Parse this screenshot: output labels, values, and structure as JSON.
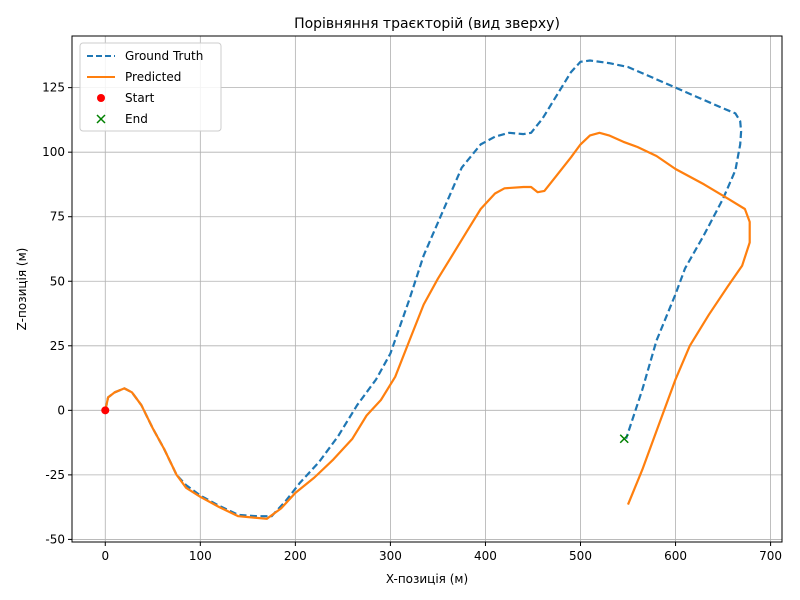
{
  "chart_data": {
    "type": "line",
    "title": "Порівняння траєкторій (вид зверху)",
    "xlabel": "X-позиція (м)",
    "ylabel": "Z-позиція (м)",
    "xlim": [
      -35,
      712
    ],
    "ylim": [
      -51,
      145
    ],
    "xticks": [
      0,
      100,
      200,
      300,
      400,
      500,
      600,
      700
    ],
    "yticks": [
      -50,
      -25,
      0,
      25,
      50,
      75,
      100,
      125
    ],
    "grid": true,
    "legend_position": "top-left",
    "series": [
      {
        "name": "Ground Truth",
        "color": "#1f77b4",
        "style": "dashed",
        "points": [
          [
            0,
            0
          ],
          [
            3,
            5
          ],
          [
            10,
            7
          ],
          [
            20,
            8.5
          ],
          [
            28,
            7
          ],
          [
            38,
            2
          ],
          [
            50,
            -7
          ],
          [
            62,
            -15
          ],
          [
            75,
            -25
          ],
          [
            85,
            -29
          ],
          [
            100,
            -33
          ],
          [
            120,
            -37
          ],
          [
            140,
            -40.5
          ],
          [
            160,
            -41
          ],
          [
            175,
            -41
          ],
          [
            190,
            -35
          ],
          [
            205,
            -28
          ],
          [
            225,
            -20
          ],
          [
            245,
            -10
          ],
          [
            265,
            2
          ],
          [
            285,
            12
          ],
          [
            300,
            22
          ],
          [
            320,
            43
          ],
          [
            335,
            60
          ],
          [
            355,
            77
          ],
          [
            375,
            94
          ],
          [
            395,
            103
          ],
          [
            410,
            106
          ],
          [
            425,
            107.5
          ],
          [
            440,
            107
          ],
          [
            448,
            107.5
          ],
          [
            460,
            113
          ],
          [
            475,
            122
          ],
          [
            490,
            131
          ],
          [
            500,
            135
          ],
          [
            510,
            135.5
          ],
          [
            530,
            134.5
          ],
          [
            550,
            133
          ],
          [
            575,
            129
          ],
          [
            600,
            125
          ],
          [
            625,
            121
          ],
          [
            650,
            117
          ],
          [
            663,
            115
          ],
          [
            668,
            112
          ],
          [
            669,
            108
          ],
          [
            668,
            103
          ],
          [
            663,
            93
          ],
          [
            650,
            82
          ],
          [
            630,
            68
          ],
          [
            610,
            55
          ],
          [
            600,
            45
          ],
          [
            580,
            27
          ],
          [
            565,
            8
          ],
          [
            548,
            -11
          ]
        ]
      },
      {
        "name": "Predicted",
        "color": "#ff7f0e",
        "style": "solid",
        "points": [
          [
            0,
            0
          ],
          [
            3,
            5
          ],
          [
            10,
            7
          ],
          [
            20,
            8.5
          ],
          [
            28,
            7
          ],
          [
            38,
            2
          ],
          [
            50,
            -7
          ],
          [
            62,
            -15
          ],
          [
            75,
            -25
          ],
          [
            85,
            -30
          ],
          [
            100,
            -33.5
          ],
          [
            120,
            -37.5
          ],
          [
            140,
            -41
          ],
          [
            155,
            -41.5
          ],
          [
            170,
            -42
          ],
          [
            185,
            -38
          ],
          [
            200,
            -32
          ],
          [
            220,
            -26
          ],
          [
            240,
            -19
          ],
          [
            260,
            -11
          ],
          [
            275,
            -2
          ],
          [
            290,
            4
          ],
          [
            305,
            13
          ],
          [
            320,
            27
          ],
          [
            335,
            41
          ],
          [
            350,
            51
          ],
          [
            365,
            60
          ],
          [
            380,
            69
          ],
          [
            395,
            78
          ],
          [
            410,
            84
          ],
          [
            420,
            86
          ],
          [
            440,
            86.5
          ],
          [
            448,
            86.5
          ],
          [
            455,
            84.5
          ],
          [
            462,
            85
          ],
          [
            475,
            91
          ],
          [
            490,
            98
          ],
          [
            500,
            103
          ],
          [
            510,
            106.5
          ],
          [
            520,
            107.5
          ],
          [
            530,
            106.5
          ],
          [
            545,
            104
          ],
          [
            560,
            102
          ],
          [
            580,
            98.5
          ],
          [
            600,
            93.5
          ],
          [
            630,
            87.5
          ],
          [
            655,
            82
          ],
          [
            673,
            78
          ],
          [
            678,
            73
          ],
          [
            678,
            65
          ],
          [
            670,
            56
          ],
          [
            655,
            48
          ],
          [
            635,
            37
          ],
          [
            615,
            25
          ],
          [
            600,
            12
          ],
          [
            580,
            -8
          ],
          [
            565,
            -23
          ],
          [
            550,
            -36.5
          ]
        ]
      },
      {
        "name": "Start",
        "color": "#ff0000",
        "style": "marker-circle",
        "points": [
          [
            0,
            0
          ]
        ]
      },
      {
        "name": "End",
        "color": "#008000",
        "style": "marker-x",
        "points": [
          [
            546,
            -11
          ]
        ]
      }
    ]
  }
}
